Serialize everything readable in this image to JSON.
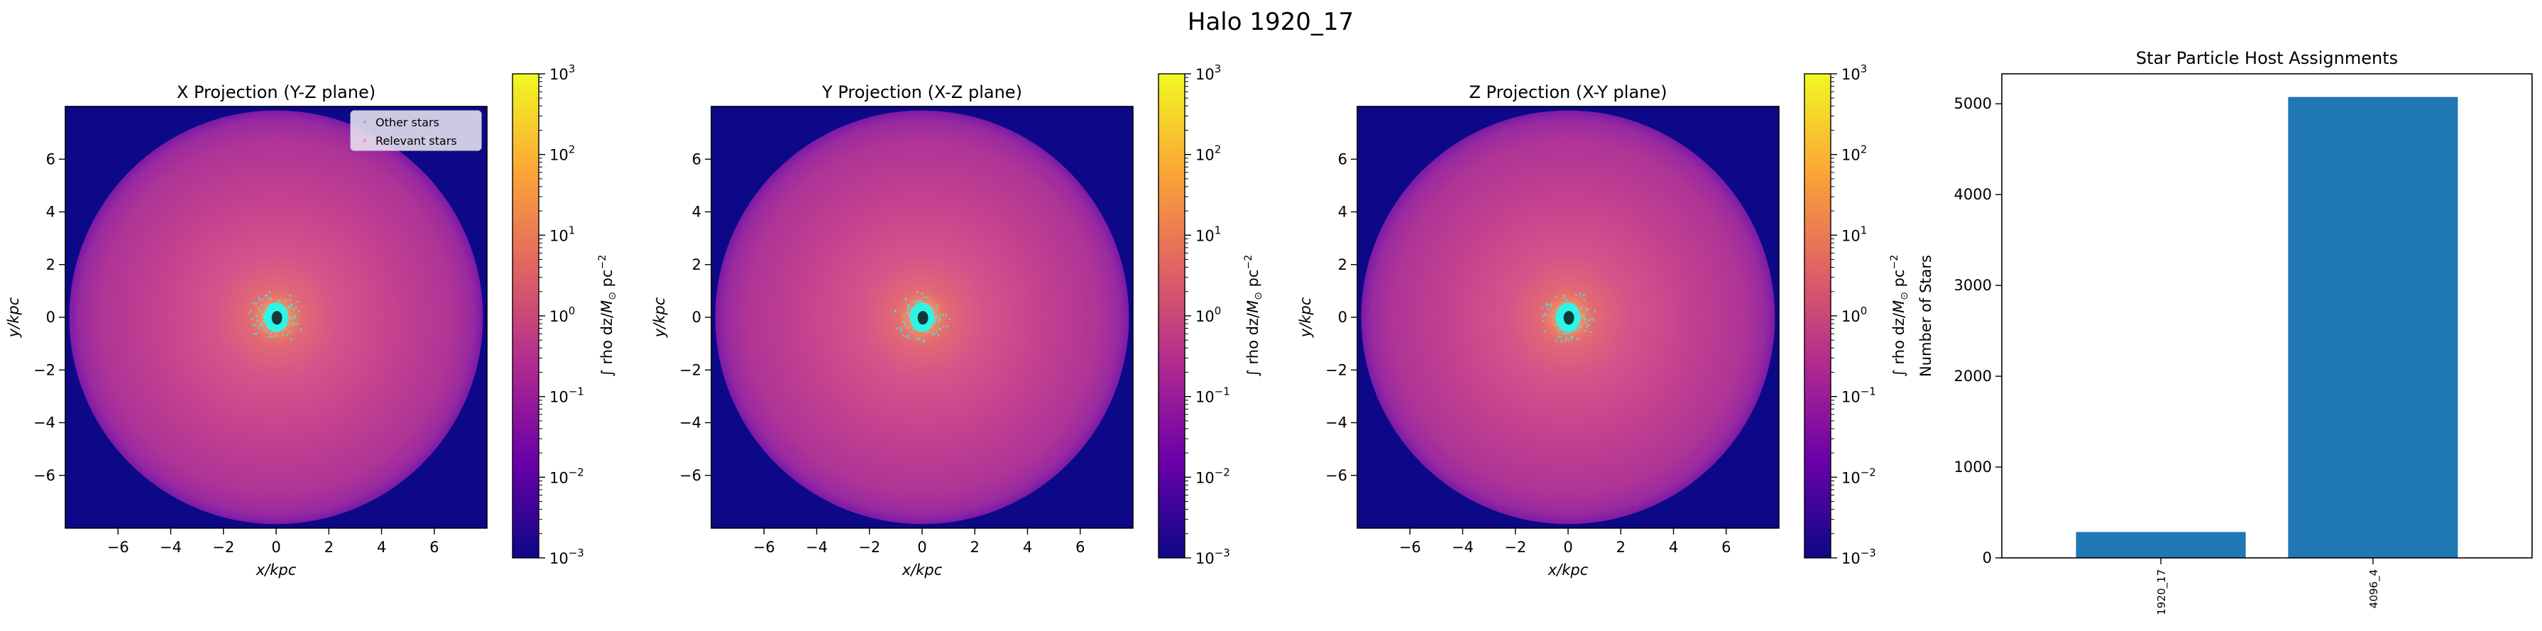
{
  "figure": {
    "suptitle": "Halo 1920_17"
  },
  "colors": {
    "bar": "#1f77b4",
    "core": "#2ff5e8",
    "core_dark": "#0f3a3a",
    "other_star": "#b0b0b0",
    "relevant_star": "#ff8fb8"
  },
  "colormap": {
    "name": "plasma",
    "stops": [
      "#0d0887",
      "#6a00a8",
      "#b12a90",
      "#e16462",
      "#fca636",
      "#f0f921"
    ]
  },
  "legend": {
    "other": "Other stars",
    "relevant": "Relevant stars"
  },
  "colorbar": {
    "ticks": [
      "10",
      "10",
      "10",
      "10",
      "10",
      "10",
      "10"
    ],
    "exponents": [
      "3",
      "2",
      "1",
      "0",
      "−1",
      "−2",
      "−3"
    ],
    "label_prefix": "∫ rho dz/",
    "label_unit_m": "M",
    "label_unit_sub": "⊙",
    "label_unit_pc": " pc",
    "label_unit_exp": "−2"
  },
  "chart_data": [
    {
      "type": "heatmap",
      "title": "X Projection (Y-Z plane)",
      "xlabel": "x/kpc",
      "ylabel": "y/kpc",
      "xlim": [
        -8,
        8
      ],
      "ylim": [
        -8,
        8
      ],
      "xticks": [
        "−6",
        "−4",
        "−2",
        "0",
        "2",
        "4",
        "6"
      ],
      "yticks": [
        "6",
        "4",
        "2",
        "0",
        "−2",
        "−4",
        "−6"
      ],
      "colorbar_range": [
        0.001,
        1000
      ],
      "colorscale": "log",
      "has_legend": true,
      "legend_placement": "upper right"
    },
    {
      "type": "heatmap",
      "title": "Y Projection (X-Z plane)",
      "xlabel": "x/kpc",
      "ylabel": "y/kpc",
      "xlim": [
        -8,
        8
      ],
      "ylim": [
        -8,
        8
      ],
      "xticks": [
        "−6",
        "−4",
        "−2",
        "0",
        "2",
        "4",
        "6"
      ],
      "yticks": [
        "6",
        "4",
        "2",
        "0",
        "−2",
        "−4",
        "−6"
      ],
      "colorbar_range": [
        0.001,
        1000
      ],
      "colorscale": "log",
      "has_legend": false
    },
    {
      "type": "heatmap",
      "title": "Z Projection (X-Y plane)",
      "xlabel": "x/kpc",
      "ylabel": "y/kpc",
      "xlim": [
        -8,
        8
      ],
      "ylim": [
        -8,
        8
      ],
      "xticks": [
        "−6",
        "−4",
        "−2",
        "0",
        "2",
        "4",
        "6"
      ],
      "yticks": [
        "6",
        "4",
        "2",
        "0",
        "−2",
        "−4",
        "−6"
      ],
      "colorbar_range": [
        0.001,
        1000
      ],
      "colorscale": "log",
      "has_legend": false
    },
    {
      "type": "bar",
      "title": "Star Particle Host Assignments",
      "xlabel": "",
      "ylabel": "Number of Stars",
      "categories": [
        "1920_17",
        "4096_4"
      ],
      "values": [
        285,
        5075
      ],
      "ylim": [
        0,
        5330
      ],
      "yticks": [
        0,
        1000,
        2000,
        3000,
        4000,
        5000
      ]
    }
  ]
}
